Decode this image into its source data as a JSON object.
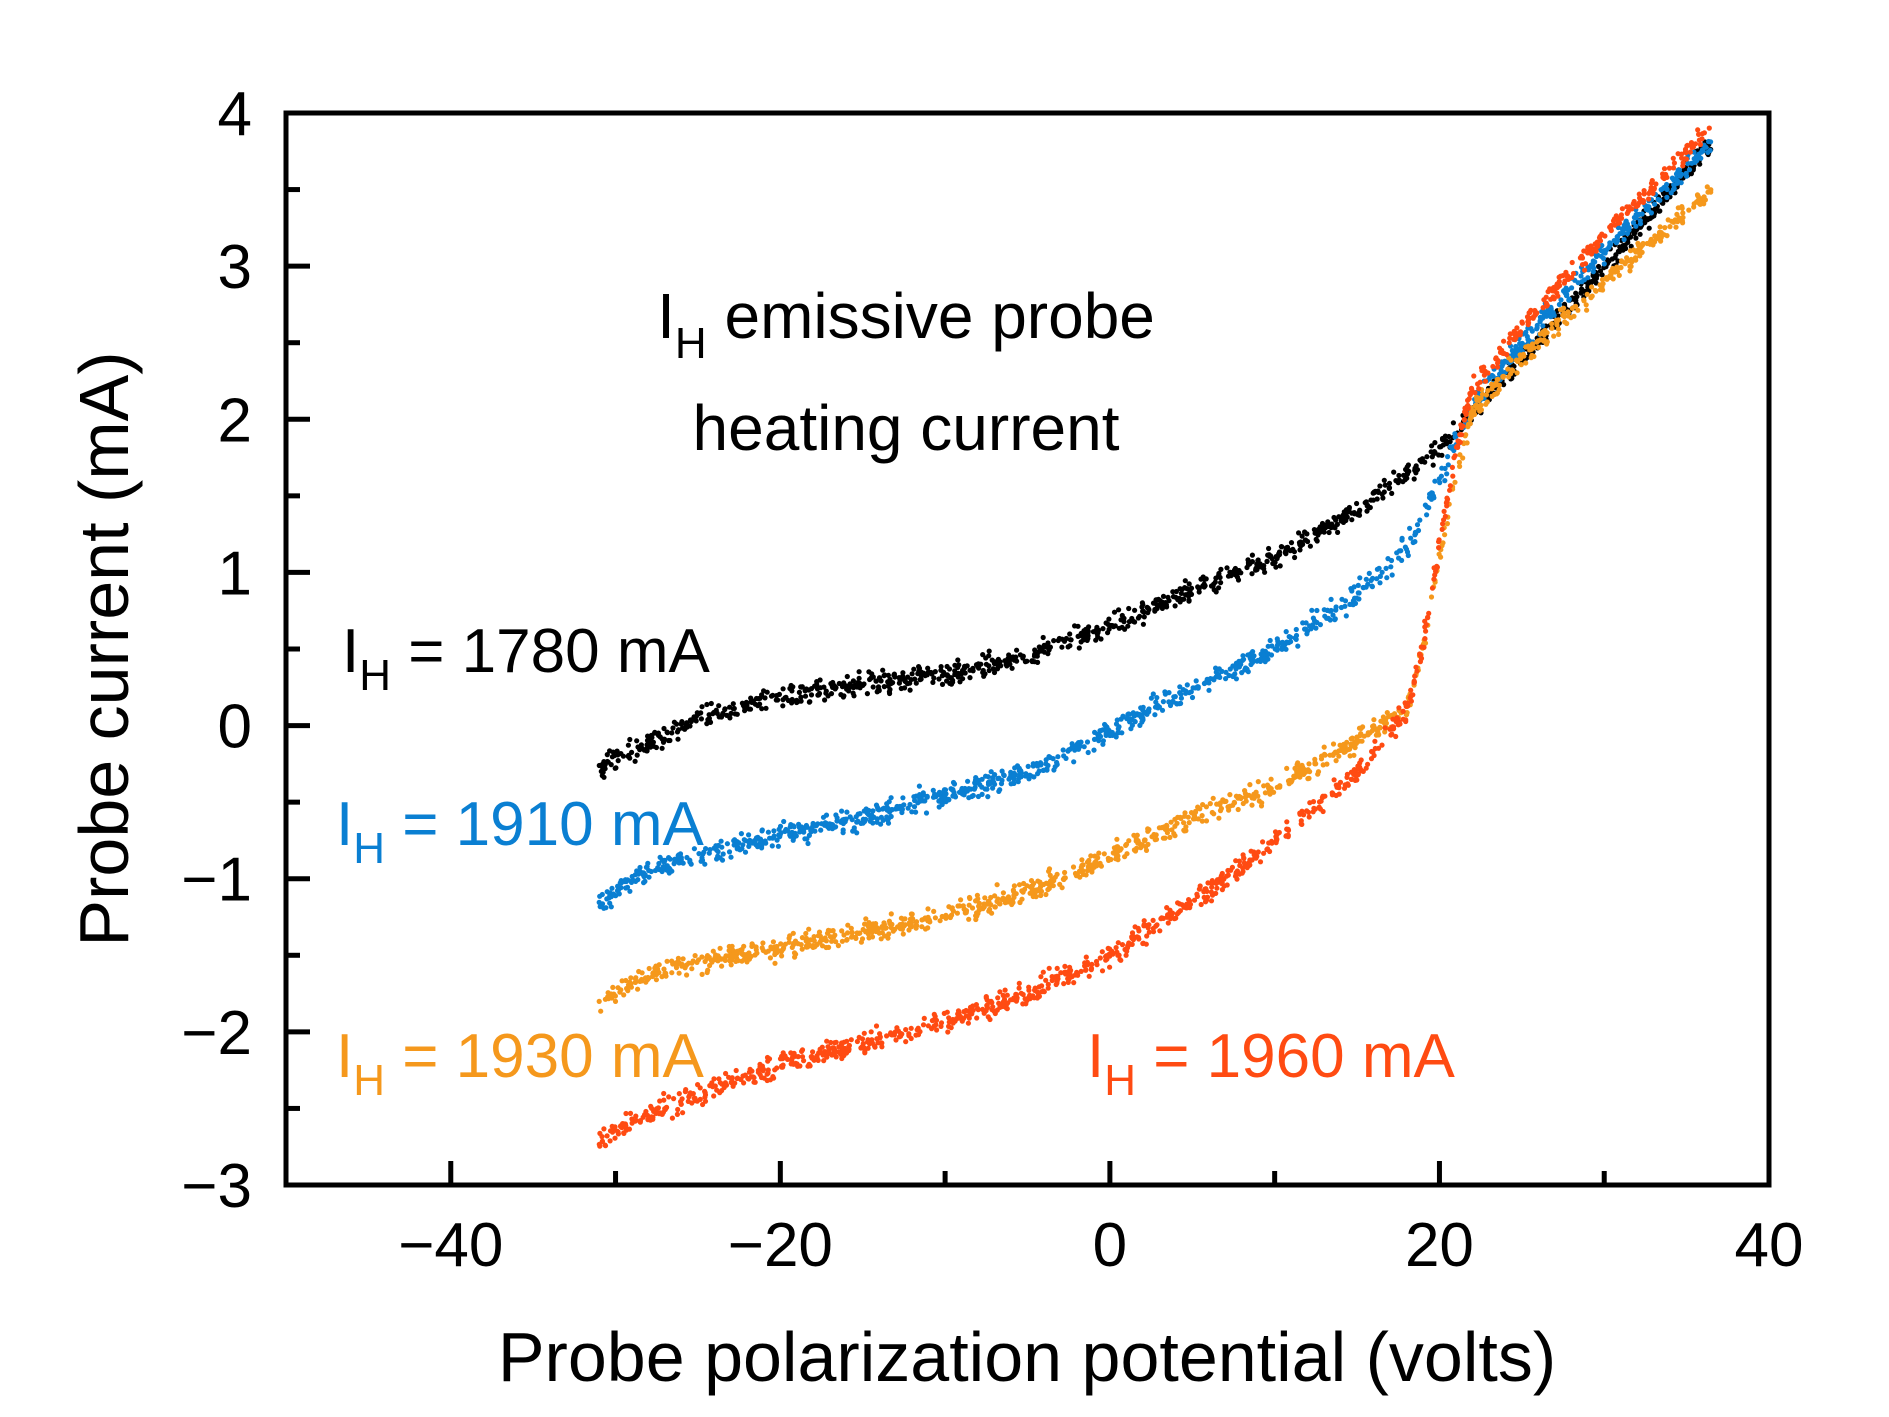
{
  "chart_data": {
    "type": "scatter",
    "xlabel": "Probe polarization potential (volts)",
    "ylabel": "Probe current (mA)",
    "xlim": [
      -50,
      40
    ],
    "ylim": [
      -3,
      4
    ],
    "x_ticks": [
      -40,
      -20,
      0,
      20,
      40
    ],
    "x_tick_labels": [
      "−40",
      "−20",
      "0",
      "20",
      "40"
    ],
    "y_ticks": [
      -3,
      -2,
      -1,
      0,
      1,
      2,
      3,
      4
    ],
    "y_tick_labels": [
      "−3",
      "−2",
      "−1",
      "0",
      "1",
      "2",
      "3",
      "4"
    ],
    "grid": false,
    "legend": "none",
    "annotation": {
      "line1_main": "I",
      "line1_sub": "H",
      "line1_rest": " emissive probe",
      "line2": "heating current"
    },
    "series": [
      {
        "label_main": "I",
        "label_sub": "H",
        "label_rest": " = 1780 mA",
        "color": "#000000",
        "x": [
          -31,
          -25,
          -20,
          -15,
          -10,
          -5,
          0,
          5,
          10,
          15,
          20,
          25,
          30,
          36.5
        ],
        "y": [
          -0.28,
          0.05,
          0.18,
          0.27,
          0.33,
          0.45,
          0.65,
          0.88,
          1.1,
          1.4,
          1.82,
          2.4,
          3.0,
          3.8
        ]
      },
      {
        "label_main": "I",
        "label_sub": "H",
        "label_rest": " = 1910 mA",
        "color": "#0a7fd2",
        "x": [
          -31,
          -28,
          -25,
          -20,
          -15,
          -10,
          -5,
          0,
          5,
          10,
          15,
          18,
          20,
          22,
          25,
          30,
          36.5
        ],
        "y": [
          -1.15,
          -0.95,
          -0.85,
          -0.72,
          -0.6,
          -0.45,
          -0.3,
          -0.05,
          0.25,
          0.5,
          0.85,
          1.15,
          1.6,
          2.1,
          2.5,
          3.1,
          3.8
        ]
      },
      {
        "label_main": "I",
        "label_sub": "H",
        "label_rest": " = 1930 mA",
        "color": "#f5981c",
        "x": [
          -31,
          -28,
          -25,
          -20,
          -15,
          -10,
          -5,
          0,
          5,
          10,
          15,
          18,
          19,
          20,
          21,
          22,
          25,
          30,
          36.5
        ],
        "y": [
          -1.8,
          -1.62,
          -1.55,
          -1.45,
          -1.35,
          -1.25,
          -1.08,
          -0.85,
          -0.6,
          -0.4,
          -0.1,
          0.1,
          0.5,
          1.1,
          1.65,
          2.05,
          2.4,
          2.9,
          3.5
        ]
      },
      {
        "label_main": "I",
        "label_sub": "H",
        "label_rest": " = 1960 mA",
        "color": "#ff4b12",
        "x": [
          -31,
          -28,
          -25,
          -20,
          -15,
          -10,
          -5,
          0,
          5,
          10,
          15,
          18,
          19,
          20,
          21,
          22,
          25,
          30,
          36.5
        ],
        "y": [
          -2.7,
          -2.55,
          -2.4,
          -2.22,
          -2.07,
          -1.93,
          -1.75,
          -1.5,
          -1.15,
          -0.75,
          -0.3,
          0.1,
          0.5,
          1.2,
          1.8,
          2.2,
          2.6,
          3.2,
          3.9
        ]
      }
    ]
  }
}
